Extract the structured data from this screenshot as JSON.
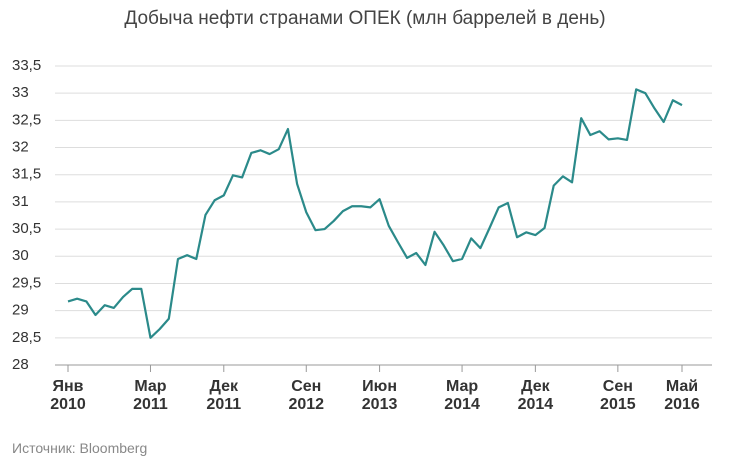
{
  "chart_data": {
    "type": "line",
    "title": "Добыча нефти странами ОПЕК (млн баррелей в день)",
    "source": "Источник: Bloomberg",
    "categories": [
      "Янв 2010",
      null,
      null,
      null,
      null,
      null,
      null,
      null,
      null,
      "Мар 2011",
      null,
      null,
      null,
      null,
      null,
      null,
      null,
      "Дек 2011",
      null,
      null,
      null,
      null,
      null,
      null,
      null,
      null,
      "Сен 2012",
      null,
      null,
      null,
      null,
      null,
      null,
      null,
      "Июн 2013",
      null,
      null,
      null,
      null,
      null,
      null,
      null,
      null,
      "Мар 2014",
      null,
      null,
      null,
      null,
      null,
      null,
      null,
      "Дек 2014",
      null,
      null,
      null,
      null,
      null,
      null,
      null,
      null,
      "Сен 2015",
      null,
      null,
      null,
      null,
      null,
      null,
      "Май 2016"
    ],
    "series": [
      {
        "name": "Добыча",
        "color": "#2b8a8a",
        "values": [
          29.17,
          29.22,
          29.17,
          28.92,
          29.1,
          29.05,
          29.25,
          29.4,
          29.4,
          28.5,
          28.66,
          28.85,
          29.95,
          30.02,
          29.95,
          30.76,
          31.03,
          31.12,
          31.49,
          31.45,
          31.9,
          31.95,
          31.88,
          31.97,
          32.34,
          31.33,
          30.81,
          30.48,
          30.5,
          30.65,
          30.83,
          30.92,
          30.92,
          30.9,
          31.05,
          30.56,
          30.26,
          29.97,
          30.06,
          29.84,
          30.45,
          30.2,
          29.91,
          29.95,
          30.33,
          30.15,
          30.52,
          30.9,
          30.98,
          30.35,
          30.44,
          30.39,
          30.52,
          31.3,
          31.47,
          31.36,
          32.54,
          32.23,
          32.3,
          32.15,
          32.17,
          32.14,
          33.07,
          33.0,
          32.72,
          32.47,
          32.87,
          32.78
        ]
      }
    ],
    "ylim": [
      28,
      33.5
    ],
    "yticks": [
      28,
      {
        "value": 28.5,
        "label": "28,5"
      },
      29,
      {
        "value": 29.5,
        "label": "29,5"
      },
      30,
      {
        "value": 30.5,
        "label": "30,5"
      },
      31,
      {
        "value": 31.5,
        "label": "31,5"
      },
      32,
      {
        "value": 32.5,
        "label": "32,5"
      },
      33,
      {
        "value": 33.5,
        "label": "33,5"
      }
    ],
    "grid": true
  }
}
